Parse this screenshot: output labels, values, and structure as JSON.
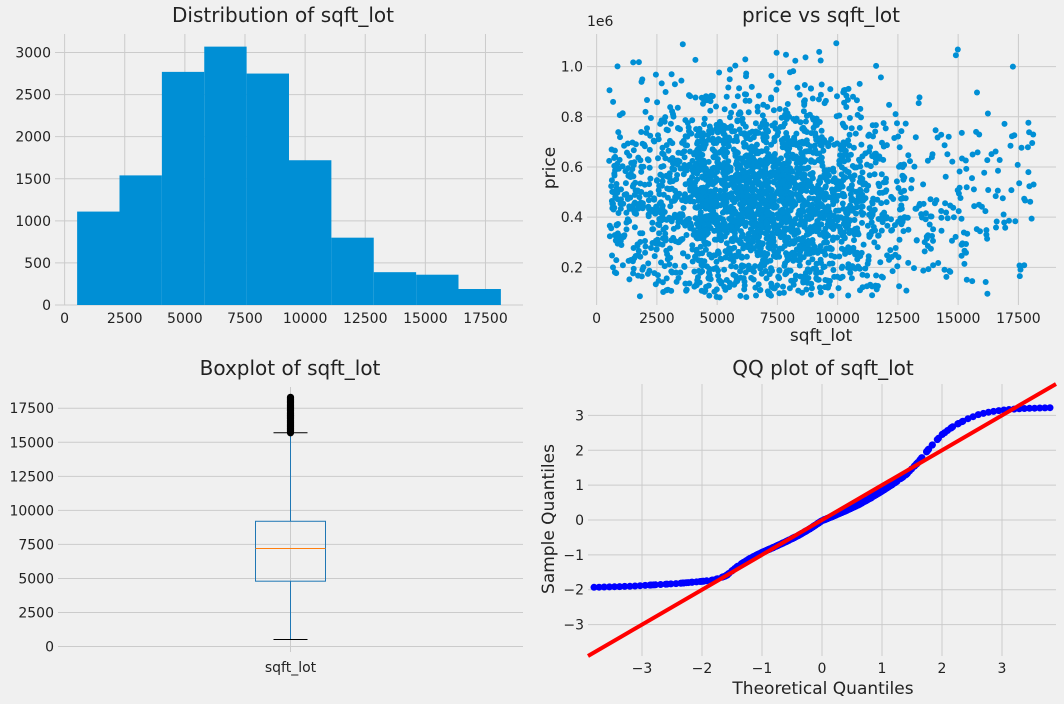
{
  "chart_data": [
    {
      "type": "bar",
      "title": "Distribution of sqft_lot",
      "xlabel": "",
      "ylabel": "",
      "bin_edges": [
        520,
        2282,
        4044,
        5806,
        7568,
        9330,
        11092,
        12854,
        14616,
        16378,
        18140
      ],
      "values": [
        1110,
        1540,
        2770,
        3070,
        2750,
        1720,
        800,
        390,
        360,
        190
      ],
      "xlim": [
        -400,
        19060
      ],
      "ylim": [
        0,
        3220
      ],
      "xticks": [
        0,
        2500,
        5000,
        7500,
        10000,
        12500,
        15000,
        17500
      ],
      "yticks": [
        0,
        500,
        1000,
        1500,
        2000,
        2500,
        3000
      ],
      "color": "#008fd5"
    },
    {
      "type": "scatter",
      "title": "price vs sqft_lot",
      "xlabel": "sqft_lot",
      "ylabel": "price",
      "y_scale_label": "1e6",
      "xlim": [
        -400,
        19060
      ],
      "ylim": [
        0.05,
        1.13
      ],
      "xticks": [
        0,
        2500,
        5000,
        7500,
        10000,
        12500,
        15000,
        17500
      ],
      "yticks": [
        0.2,
        0.4,
        0.6,
        0.8,
        1.0
      ],
      "x_range": [
        520,
        18140
      ],
      "y_range": [
        0.08,
        1.1
      ],
      "color": "#008fd5"
    },
    {
      "type": "boxplot",
      "title": "Boxplot of sqft_lot",
      "category": "sqft_lot",
      "whisker_low": 520,
      "q1": 4800,
      "median": 7200,
      "q3": 9200,
      "whisker_high": 15700,
      "outliers_range": [
        15700,
        18300
      ],
      "ylim": [
        -400,
        19060
      ],
      "yticks": [
        0,
        2500,
        5000,
        7500,
        10000,
        12500,
        15000,
        17500
      ],
      "box_color": "#1f77b4",
      "median_color": "#ff7f0e"
    },
    {
      "type": "scatter",
      "title": "QQ plot of sqft_lot",
      "xlabel": "Theoretical Quantiles",
      "ylabel": "Sample Quantiles",
      "xlim": [
        -3.9,
        3.9
      ],
      "ylim": [
        -3.9,
        3.9
      ],
      "xticks": [
        -3,
        -2,
        -1,
        0,
        1,
        2,
        3
      ],
      "yticks": [
        -3,
        -2,
        -1,
        0,
        1,
        2,
        3
      ],
      "quantiles": [
        [
          -3.8,
          -1.93
        ],
        [
          -3.6,
          -1.92
        ],
        [
          -3.4,
          -1.91
        ],
        [
          -3.2,
          -1.9
        ],
        [
          -3.0,
          -1.88
        ],
        [
          -2.8,
          -1.86
        ],
        [
          -2.6,
          -1.84
        ],
        [
          -2.4,
          -1.82
        ],
        [
          -2.2,
          -1.79
        ],
        [
          -2.0,
          -1.76
        ],
        [
          -1.8,
          -1.72
        ],
        [
          -1.6,
          -1.6
        ],
        [
          -1.4,
          -1.32
        ],
        [
          -1.2,
          -1.1
        ],
        [
          -1.0,
          -0.93
        ],
        [
          -0.8,
          -0.78
        ],
        [
          -0.6,
          -0.62
        ],
        [
          -0.4,
          -0.45
        ],
        [
          -0.2,
          -0.25
        ],
        [
          0.0,
          -0.02
        ],
        [
          0.2,
          0.12
        ],
        [
          0.4,
          0.27
        ],
        [
          0.6,
          0.43
        ],
        [
          0.8,
          0.62
        ],
        [
          1.0,
          0.83
        ],
        [
          1.2,
          1.05
        ],
        [
          1.4,
          1.3
        ],
        [
          1.6,
          1.65
        ],
        [
          1.8,
          2.08
        ],
        [
          2.0,
          2.45
        ],
        [
          2.2,
          2.7
        ],
        [
          2.4,
          2.88
        ],
        [
          2.6,
          3.02
        ],
        [
          2.8,
          3.1
        ],
        [
          3.0,
          3.15
        ],
        [
          3.2,
          3.18
        ],
        [
          3.4,
          3.2
        ],
        [
          3.6,
          3.21
        ],
        [
          3.8,
          3.22
        ]
      ],
      "reference_line": {
        "slope": 1.0,
        "intercept": 0.0
      },
      "point_color": "#0000ff",
      "line_color": "#ff0000"
    }
  ]
}
